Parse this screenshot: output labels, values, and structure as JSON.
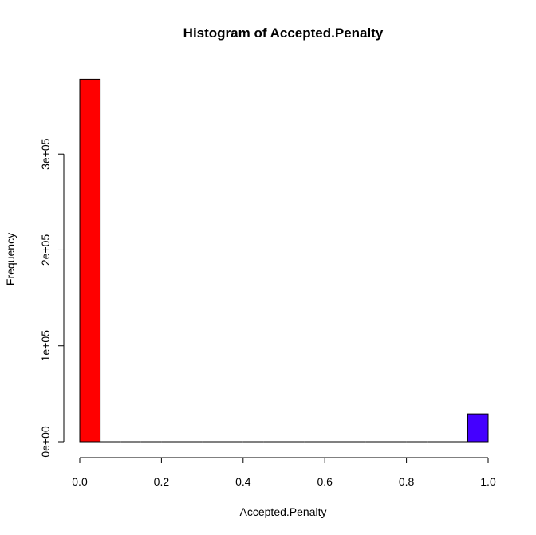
{
  "chart_data": {
    "type": "bar",
    "title": "Histogram of Accepted.Penalty",
    "xlabel": "Accepted.Penalty",
    "ylabel": "Frequency",
    "xlim": [
      0.0,
      1.0
    ],
    "ylim": [
      0,
      380000
    ],
    "x_ticks": [
      {
        "value": 0.0,
        "label": "0.0"
      },
      {
        "value": 0.2,
        "label": "0.2"
      },
      {
        "value": 0.4,
        "label": "0.4"
      },
      {
        "value": 0.6,
        "label": "0.6"
      },
      {
        "value": 0.8,
        "label": "0.8"
      },
      {
        "value": 1.0,
        "label": "1.0"
      }
    ],
    "y_ticks": [
      {
        "value": 0,
        "label": "0e+00"
      },
      {
        "value": 100000,
        "label": "1e+05"
      },
      {
        "value": 200000,
        "label": "2e+05"
      },
      {
        "value": 300000,
        "label": "3e+05"
      }
    ],
    "bin_width": 0.05,
    "bins": [
      {
        "start": 0.0,
        "end": 0.05,
        "count": 378000,
        "color": "#ff0000"
      },
      {
        "start": 0.05,
        "end": 0.1,
        "count": 0
      },
      {
        "start": 0.1,
        "end": 0.15,
        "count": 0
      },
      {
        "start": 0.15,
        "end": 0.2,
        "count": 0
      },
      {
        "start": 0.2,
        "end": 0.25,
        "count": 0
      },
      {
        "start": 0.25,
        "end": 0.3,
        "count": 0
      },
      {
        "start": 0.3,
        "end": 0.35,
        "count": 0
      },
      {
        "start": 0.35,
        "end": 0.4,
        "count": 0
      },
      {
        "start": 0.4,
        "end": 0.45,
        "count": 0
      },
      {
        "start": 0.45,
        "end": 0.5,
        "count": 0
      },
      {
        "start": 0.5,
        "end": 0.55,
        "count": 0
      },
      {
        "start": 0.55,
        "end": 0.6,
        "count": 0
      },
      {
        "start": 0.6,
        "end": 0.65,
        "count": 0
      },
      {
        "start": 0.65,
        "end": 0.7,
        "count": 0
      },
      {
        "start": 0.7,
        "end": 0.75,
        "count": 0
      },
      {
        "start": 0.75,
        "end": 0.8,
        "count": 0
      },
      {
        "start": 0.8,
        "end": 0.85,
        "count": 0
      },
      {
        "start": 0.85,
        "end": 0.9,
        "count": 0
      },
      {
        "start": 0.9,
        "end": 0.95,
        "count": 0
      },
      {
        "start": 0.95,
        "end": 1.0,
        "count": 29000,
        "color": "#4400ff"
      }
    ],
    "grid": false,
    "colors": {
      "axis": "#000000",
      "bar_outline": "#000000"
    }
  }
}
